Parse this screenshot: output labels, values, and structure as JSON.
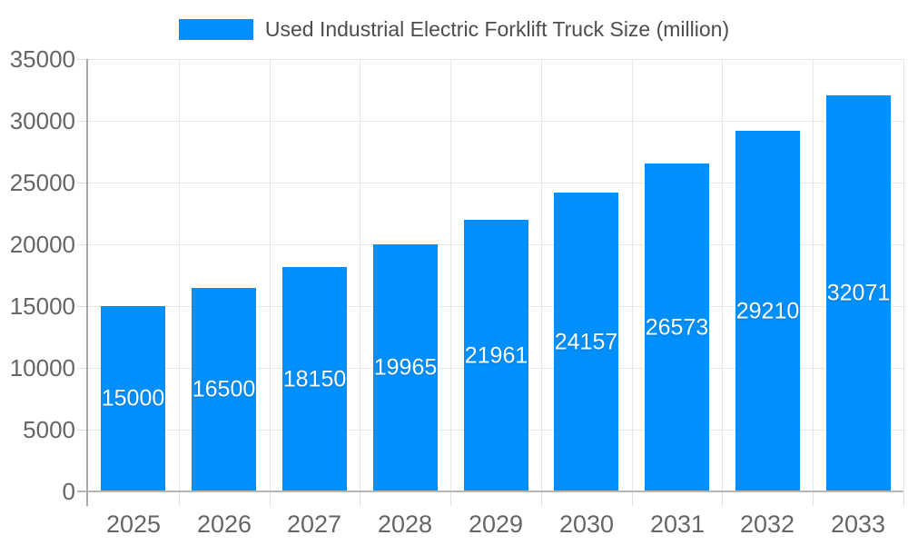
{
  "chart_data": {
    "type": "bar",
    "title": "Used Industrial Electric Forklift Truck Size (million)",
    "legend": {
      "label": "Used Industrial Electric Forklift Truck Size (million)",
      "position": "top"
    },
    "categories": [
      "2025",
      "2026",
      "2027",
      "2028",
      "2029",
      "2030",
      "2031",
      "2032",
      "2033"
    ],
    "series": [
      {
        "name": "Used Industrial Electric Forklift Truck Size (million)",
        "values": [
          15000,
          16500,
          18150,
          19965,
          21961,
          24157,
          26573,
          29210,
          32071
        ]
      }
    ],
    "xlabel": "",
    "ylabel": "",
    "ylim": [
      0,
      35000
    ],
    "yticks": [
      0,
      5000,
      10000,
      15000,
      20000,
      25000,
      30000,
      35000
    ],
    "grid": true,
    "data_labels_inside_bars": true,
    "colors": {
      "bar": "#008FFB",
      "grid_line": "#e7e7e7",
      "tick_line": "#e0e0e0",
      "x_axis_line": "#b6b6b6",
      "y_axis_line": "#a8a8a8",
      "axis_label_text": "#666666",
      "legend_text": "#4d4d4d",
      "data_label_text": "#ffffff",
      "background": "#ffffff"
    }
  }
}
